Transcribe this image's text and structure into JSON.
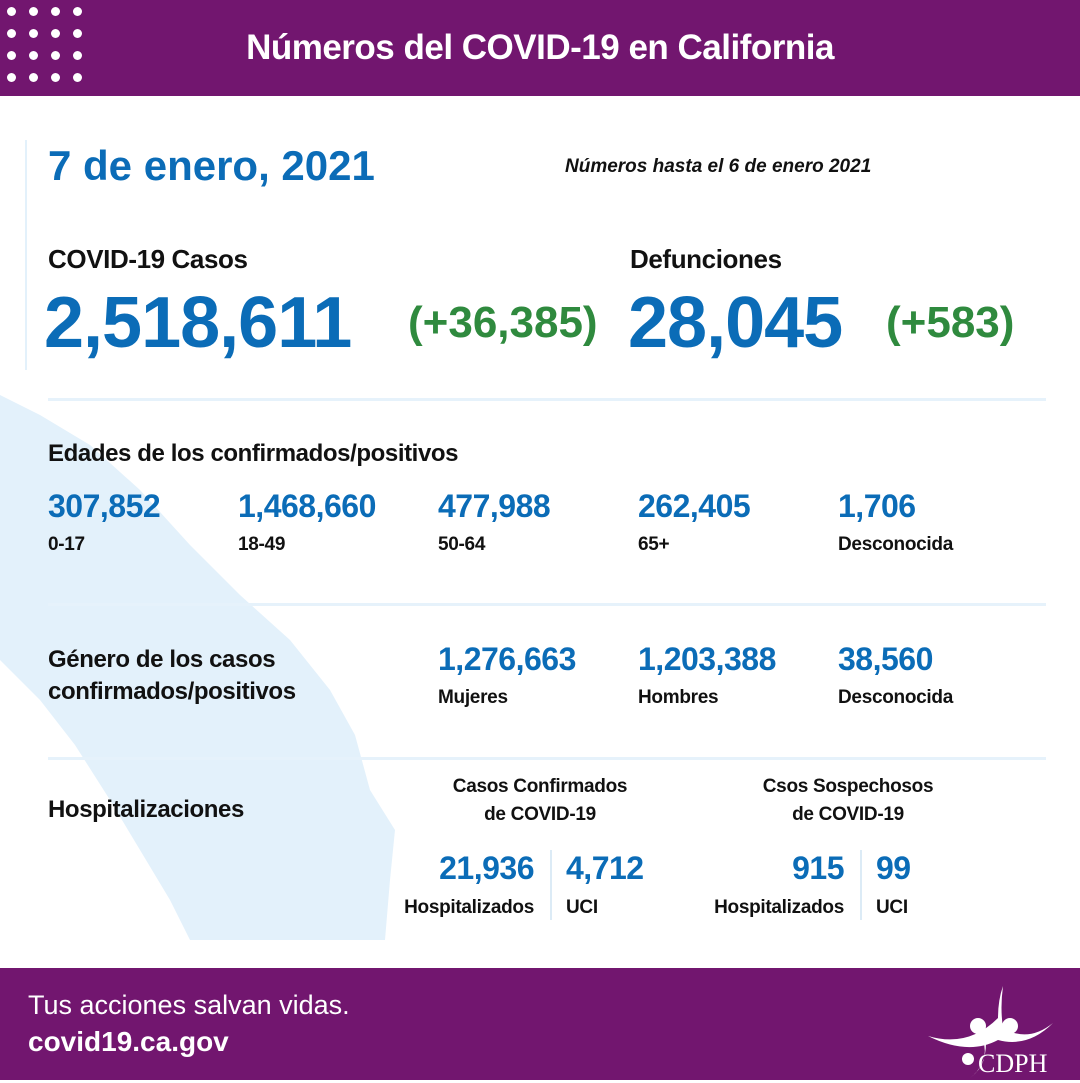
{
  "header": {
    "title": "Números del COVID-19 en California"
  },
  "date": "7 de enero, 2021",
  "as_of": "Números hasta el 6 de enero 2021",
  "cases": {
    "label": "COVID-19 Casos",
    "total": "2,518,611",
    "change": "(+36,385)"
  },
  "deaths": {
    "label": "Defunciones",
    "total": "28,045",
    "change": "(+583)"
  },
  "ages": {
    "label": "Edades de los confirmados/positivos",
    "groups": [
      {
        "value": "307,852",
        "label": "0-17"
      },
      {
        "value": "1,468,660",
        "label": "18-49"
      },
      {
        "value": "477,988",
        "label": "50-64"
      },
      {
        "value": "262,405",
        "label": "65+"
      },
      {
        "value": "1,706",
        "label": "Desconocida"
      }
    ]
  },
  "gender": {
    "label_line1": "Género de los casos",
    "label_line2": "confirmados/positivos",
    "groups": [
      {
        "value": "1,276,663",
        "label": "Mujeres"
      },
      {
        "value": "1,203,388",
        "label": "Hombres"
      },
      {
        "value": "38,560",
        "label": "Desconocida"
      }
    ]
  },
  "hosp": {
    "label": "Hospitalizaciones",
    "confirmed": {
      "title_line1": "Casos Confirmados",
      "title_line2": "de COVID-19",
      "hospitalized": "21,936",
      "hospitalized_label": "Hospitalizados",
      "icu": "4,712",
      "icu_label": "UCI"
    },
    "suspected": {
      "title_line1": "Csos Sospechosos",
      "title_line2": "de COVID-19",
      "hospitalized": "915",
      "hospitalized_label": "Hospitalizados",
      "icu": "99",
      "icu_label": "UCI"
    }
  },
  "footer": {
    "tagline": "Tus acciones salvan vidas.",
    "url": "covid19.ca.gov",
    "logo_text": "CDPH"
  },
  "colors": {
    "purple": "#72166f",
    "blue": "#0b6cb7",
    "green": "#2f8a3e",
    "map": "#e3f1fb"
  }
}
